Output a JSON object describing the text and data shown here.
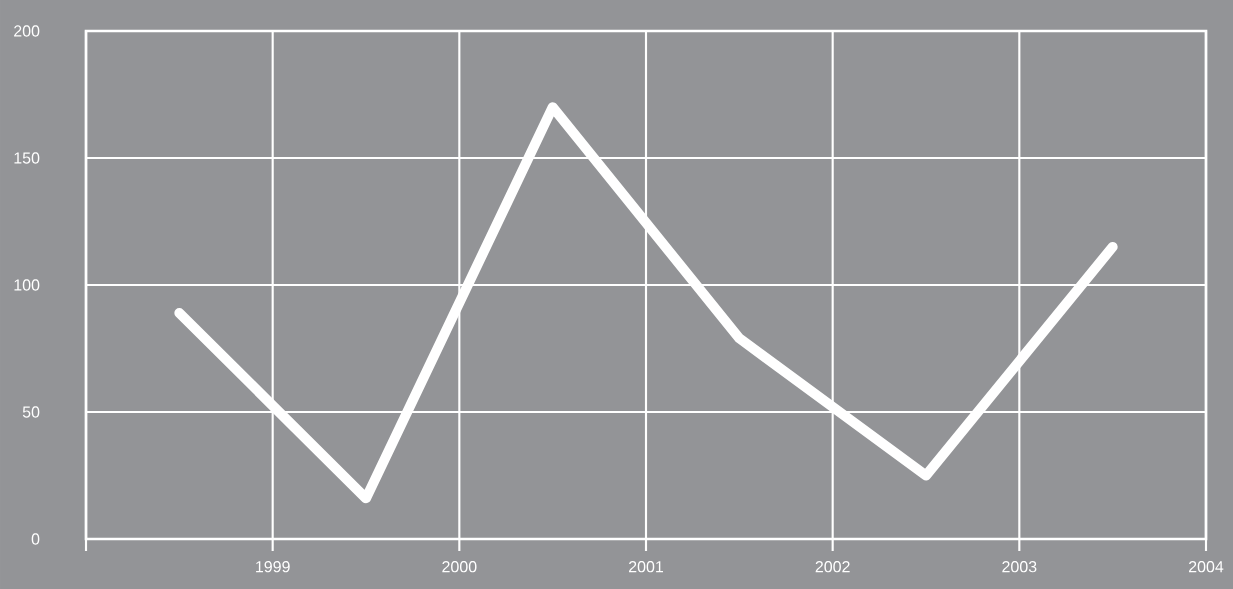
{
  "chart_data": {
    "type": "line",
    "x": [
      1998.5,
      1999.5,
      2000.5,
      2001.5,
      2002.5,
      2003.5
    ],
    "values": [
      89,
      16,
      170,
      79,
      25,
      115
    ],
    "color": "#ffffff",
    "xlim": [
      1998,
      2004
    ],
    "xticks": [
      {
        "value": 1998,
        "label": null
      },
      1999,
      2000,
      2001,
      2002,
      2003,
      2004
    ],
    "ylim": [
      0,
      200
    ],
    "yticks": [
      0,
      50,
      100,
      150,
      200
    ],
    "grid": true,
    "marker": "none",
    "line_style": "solid"
  }
}
